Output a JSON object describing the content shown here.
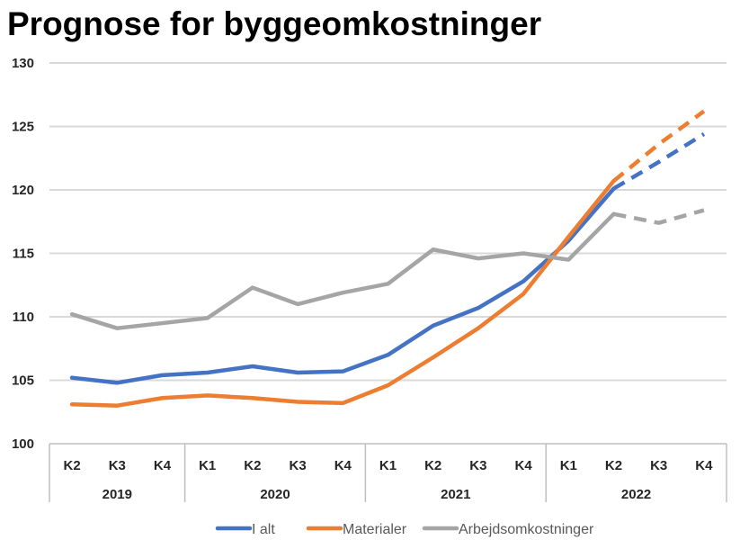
{
  "chart_data": {
    "type": "line",
    "title": "Prognose for byggeomkostninger",
    "xlabel": "",
    "ylabel": "",
    "ylim": [
      100,
      130
    ],
    "y_ticks": [
      100,
      105,
      110,
      115,
      120,
      125,
      130
    ],
    "grid": "horizontal",
    "legend_position": "bottom",
    "categories": [
      "K2",
      "K3",
      "K4",
      "K1",
      "K2",
      "K3",
      "K4",
      "K1",
      "K2",
      "K3",
      "K4",
      "K1",
      "K2",
      "K3",
      "K4"
    ],
    "year_groups": [
      {
        "label": "2019",
        "count": 3
      },
      {
        "label": "2020",
        "count": 4
      },
      {
        "label": "2021",
        "count": 4
      },
      {
        "label": "2022",
        "count": 4
      }
    ],
    "forecast_from_index": 12,
    "series": [
      {
        "name": "I alt",
        "color": "#4472C4",
        "values": [
          105.2,
          104.8,
          105.4,
          105.6,
          106.1,
          105.6,
          105.7,
          107.0,
          109.3,
          110.7,
          112.8,
          116.0,
          120.1,
          122.2,
          124.4
        ]
      },
      {
        "name": "Materialer",
        "color": "#ED7D31",
        "values": [
          103.1,
          103.0,
          103.6,
          103.8,
          103.6,
          103.3,
          103.2,
          104.6,
          106.8,
          109.1,
          111.8,
          116.3,
          120.7,
          123.6,
          126.2
        ]
      },
      {
        "name": "Arbejdsomkostninger",
        "color": "#A5A5A5",
        "values": [
          110.2,
          109.1,
          109.5,
          109.9,
          112.3,
          111.0,
          111.9,
          112.6,
          115.3,
          114.6,
          115.0,
          114.5,
          118.1,
          117.4,
          118.4
        ]
      }
    ]
  }
}
